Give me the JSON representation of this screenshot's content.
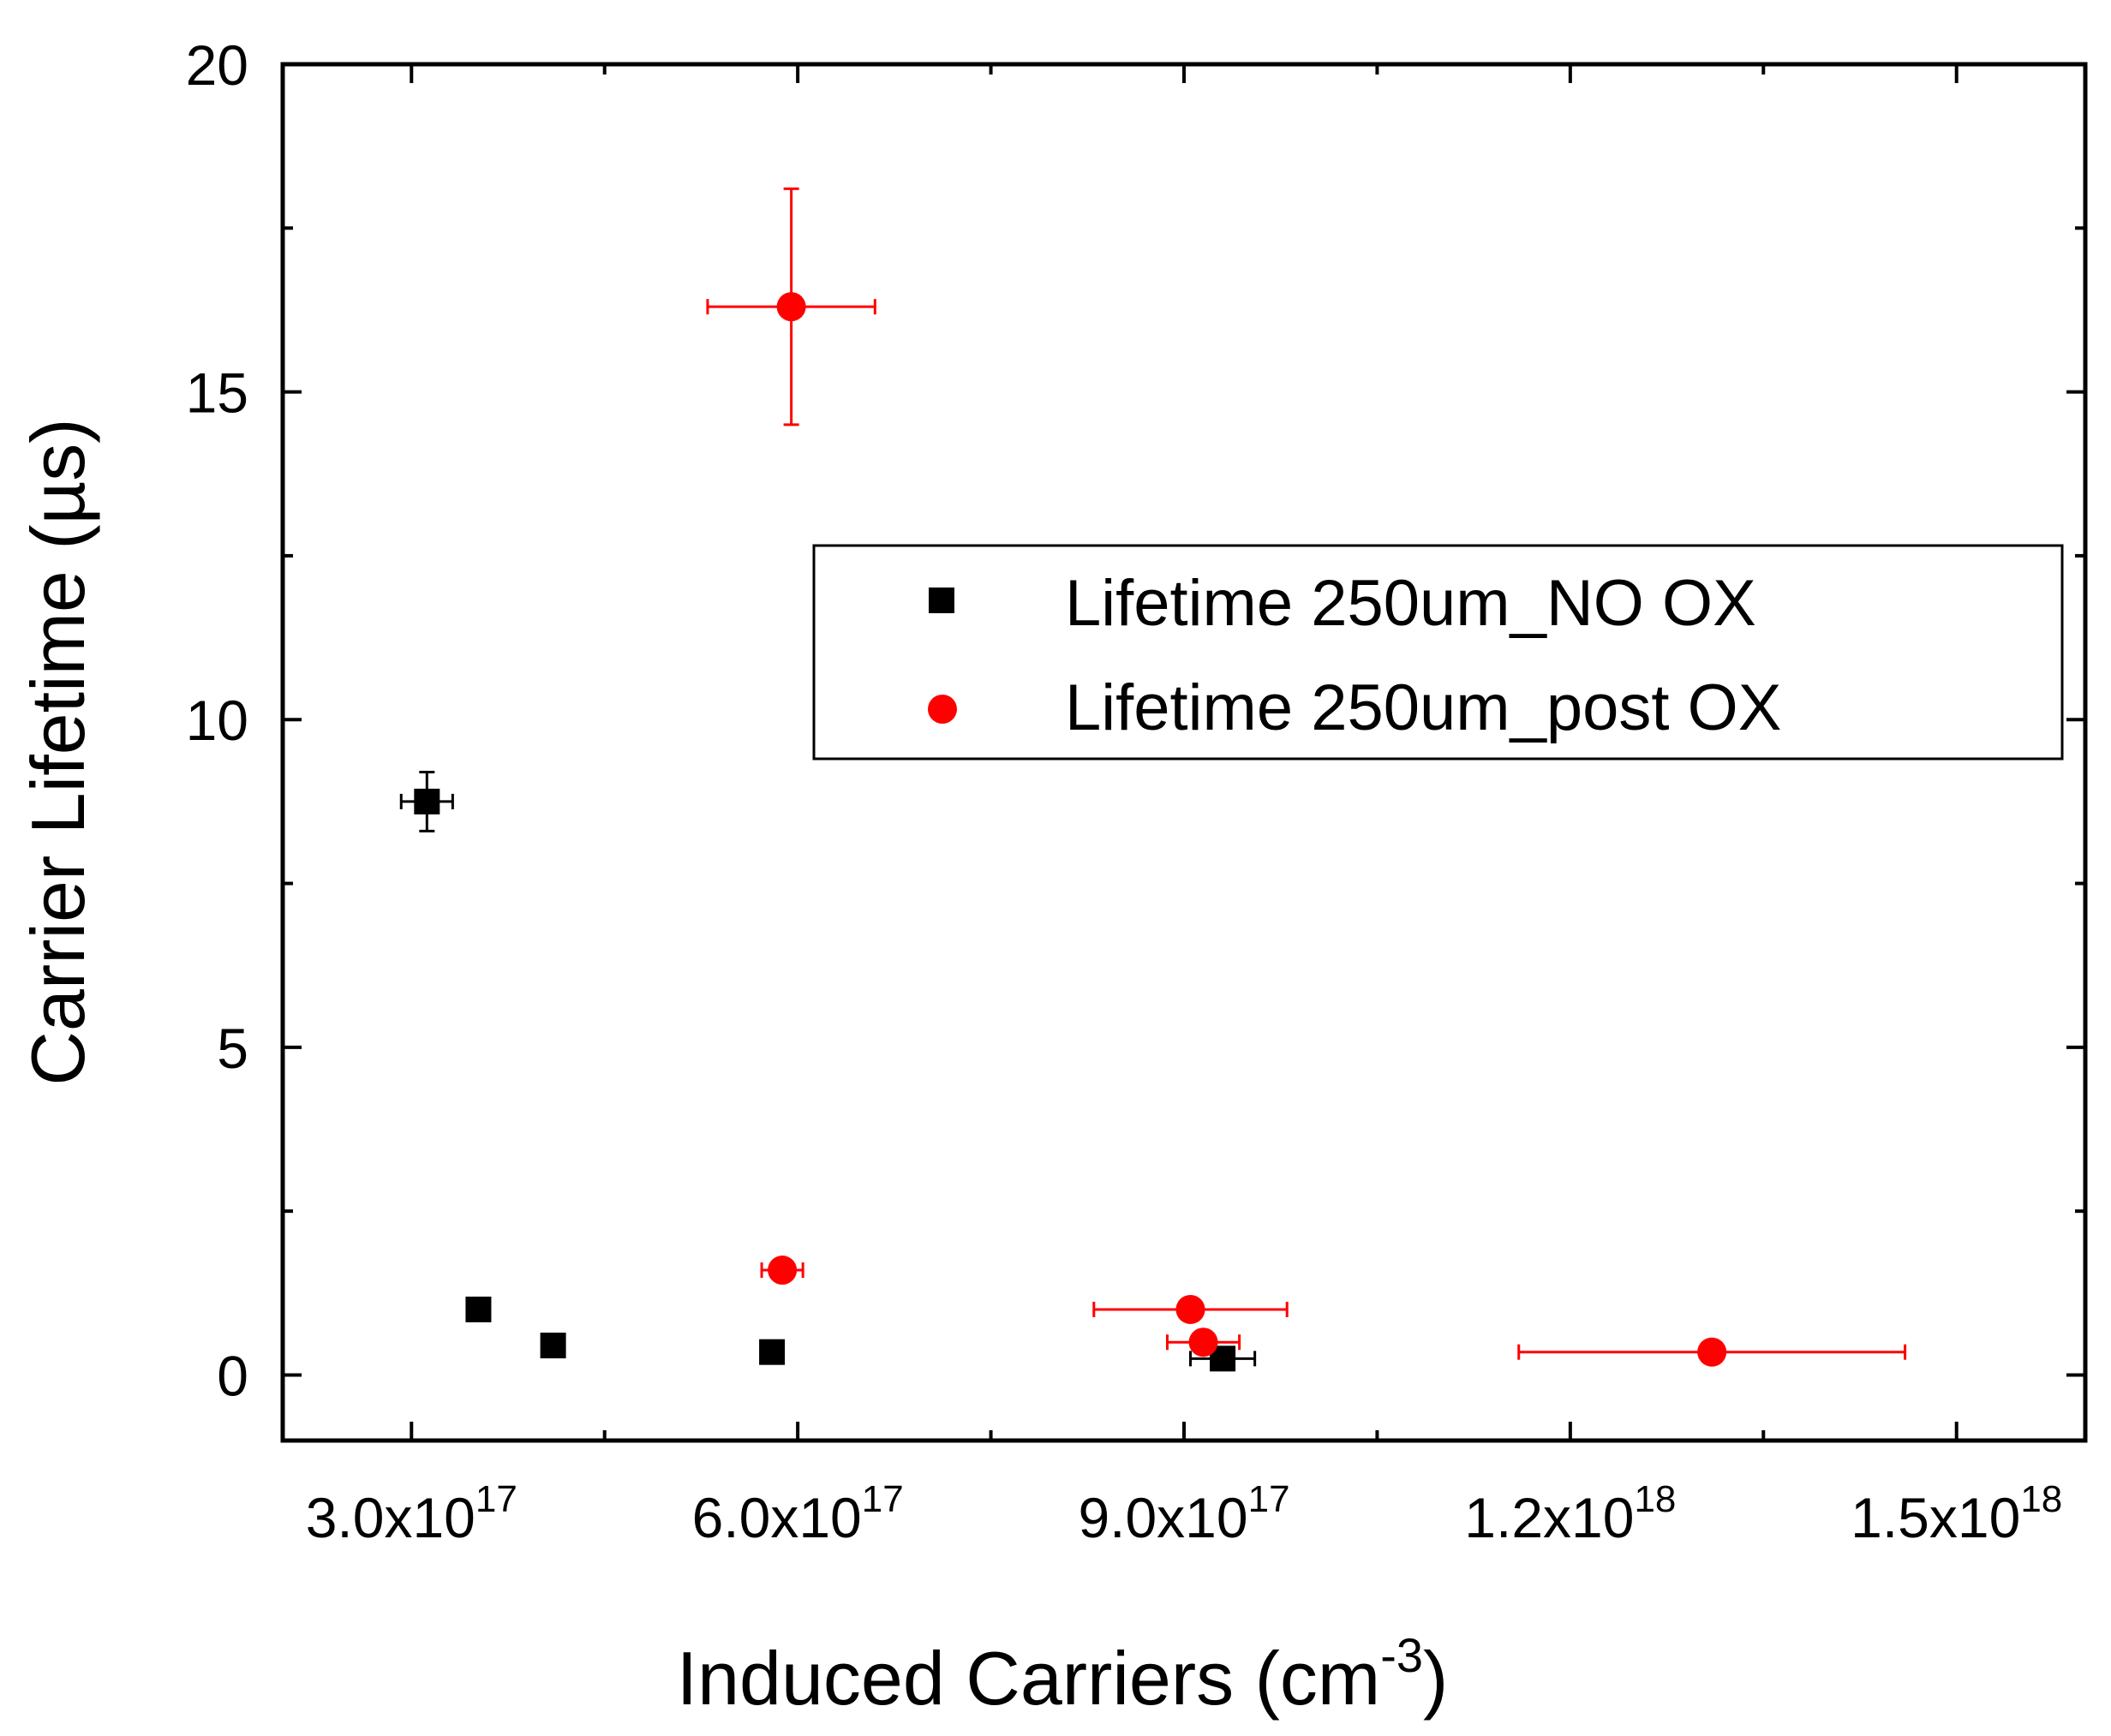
{
  "chart_data": {
    "type": "scatter",
    "title": "",
    "xlabel": "Induced Carriers (cm",
    "xlabel_exponent": "-3",
    "xlabel_suffix": ")",
    "ylabel": "Carrier Lifetime (µs)",
    "xlim": [
      2e+17,
      1.6e+18
    ],
    "ylim": [
      -1,
      20
    ],
    "grid": false,
    "legend_position": "upper-right",
    "x_ticks": [
      {
        "value": 3e+17,
        "mantissa": "3.0x10",
        "exponent": "17"
      },
      {
        "value": 6e+17,
        "mantissa": "6.0x10",
        "exponent": "17"
      },
      {
        "value": 9e+17,
        "mantissa": "9.0x10",
        "exponent": "17"
      },
      {
        "value": 1.2e+18,
        "mantissa": "1.2x10",
        "exponent": "18"
      },
      {
        "value": 1.5e+18,
        "mantissa": "1.5x10",
        "exponent": "18"
      }
    ],
    "x_minor_ticks": [
      4.5e+17,
      7.5e+17,
      1.05e+18,
      1.35e+18
    ],
    "y_ticks": [
      {
        "value": 0,
        "label": "0"
      },
      {
        "value": 5,
        "label": "5"
      },
      {
        "value": 10,
        "label": "10"
      },
      {
        "value": 15,
        "label": "15"
      },
      {
        "value": 20,
        "label": "20"
      }
    ],
    "y_minor_ticks": [
      2.5,
      7.5,
      12.5,
      17.5
    ],
    "series": [
      {
        "name": "Lifetime 250um_NO OX",
        "marker": "square",
        "color": "#000000",
        "points": [
          {
            "x": 3.12e+17,
            "y": 8.75,
            "xerr": 2e+16,
            "yerr": 0.45
          },
          {
            "x": 3.52e+17,
            "y": 1.0,
            "xerr": 0,
            "yerr": 0
          },
          {
            "x": 4.1e+17,
            "y": 0.45,
            "xerr": 0,
            "yerr": 0
          },
          {
            "x": 5.8e+17,
            "y": 0.35,
            "xerr": 0,
            "yerr": 0
          },
          {
            "x": 9.3e+17,
            "y": 0.25,
            "xerr": 2.5e+16,
            "yerr": 0
          }
        ]
      },
      {
        "name": "Lifetime 250um_post OX",
        "marker": "circle",
        "color": "#ff0000",
        "points": [
          {
            "x": 5.95e+17,
            "y": 16.3,
            "xerr": 6.5e+16,
            "yerr": 1.8
          },
          {
            "x": 5.88e+17,
            "y": 1.6,
            "xerr": 1.6e+16,
            "yerr": 0
          },
          {
            "x": 9.05e+17,
            "y": 1.0,
            "xerr": 7.5e+16,
            "yerr": 0
          },
          {
            "x": 9.15e+17,
            "y": 0.5,
            "xerr": 2.8e+16,
            "yerr": 0
          },
          {
            "x": 1.31e+18,
            "y": 0.35,
            "xerr": 1.5e+17,
            "yerr": 0
          }
        ]
      }
    ]
  }
}
